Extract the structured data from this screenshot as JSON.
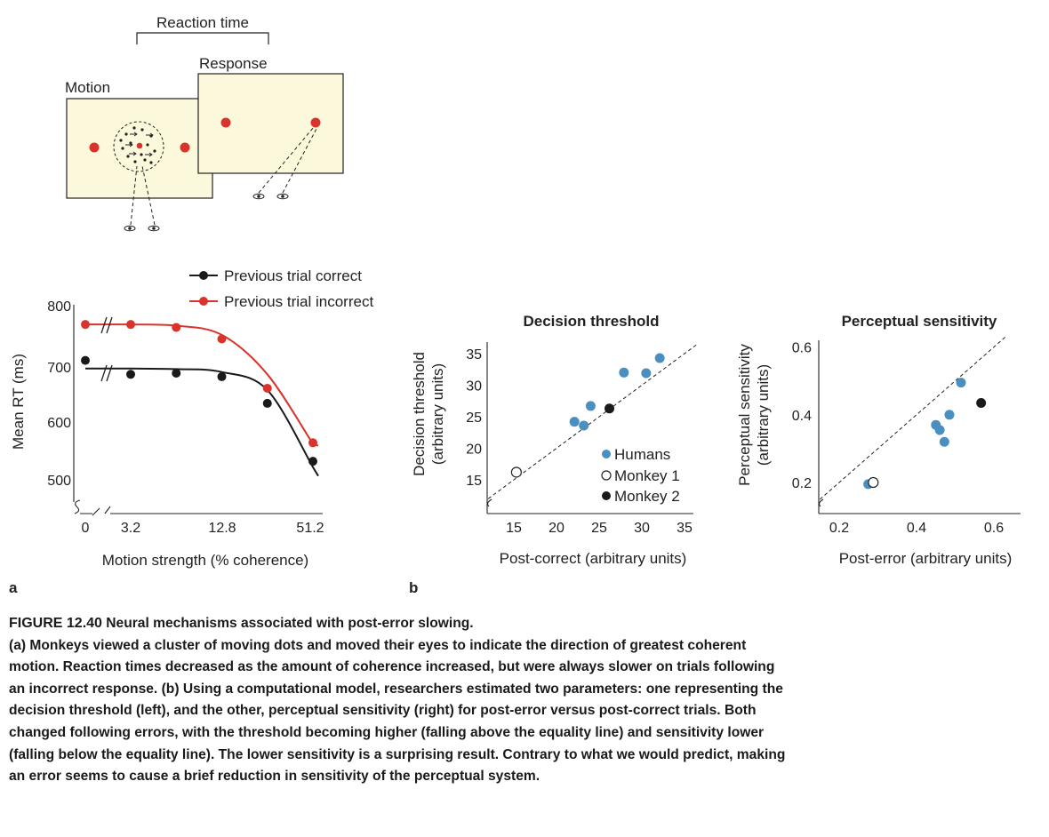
{
  "panel_a": {
    "label": "a",
    "diagram": {
      "reaction_time_label": "Reaction time",
      "motion_label": "Motion",
      "response_label": "Response",
      "screen_fill": "#fcf8dc",
      "target_color": "#d9342b"
    }
  },
  "panel_b": {
    "label": "b"
  },
  "colors": {
    "correct": "#1a1a1a",
    "incorrect": "#d9342b",
    "humans": "#4a8fc0",
    "monkey2": "#1a1a1a"
  },
  "chart_data": [
    {
      "id": "rt",
      "type": "line",
      "title": "",
      "xlabel": "Motion strength (% coherence)",
      "ylabel": "Mean RT (ms)",
      "ylim": [
        470,
        805
      ],
      "y_ticks": [
        "800",
        "700",
        "600",
        "500"
      ],
      "x_tick_labels": [
        "0",
        "3.2",
        "12.8",
        "51.2"
      ],
      "grid": false,
      "legend": "top",
      "series": [
        {
          "name": "Previous trial correct",
          "coherence": [
            0,
            1.6,
            3.2,
            6.4,
            12.8,
            25.6,
            51.2
          ],
          "values": [
            704,
            null,
            680,
            682,
            676,
            630,
            530
          ],
          "fit": [
            690,
            690,
            690,
            689,
            684,
            653,
            520
          ]
        },
        {
          "name": "Previous trial incorrect",
          "coherence": [
            0,
            1.6,
            3.2,
            6.4,
            12.8,
            25.6,
            51.2
          ],
          "values": [
            766,
            null,
            766,
            761,
            741,
            656,
            562
          ],
          "fit": [
            766,
            766,
            766,
            764,
            748,
            680,
            560
          ]
        }
      ]
    },
    {
      "id": "threshold",
      "type": "scatter",
      "title": "Decision threshold",
      "xlabel": "Post-correct (arbitrary units)",
      "ylabel": [
        "Decision threshold",
        "(arbitrary units)"
      ],
      "xlim": [
        11,
        37
      ],
      "ylim": [
        11,
        37
      ],
      "x_ticks": [
        15,
        20,
        25,
        30,
        35
      ],
      "y_ticks": [
        15,
        20,
        25,
        30,
        35
      ],
      "equality_line": true,
      "legend": "lower-right",
      "legend_entries": [
        "Humans",
        "Monkey 1",
        "Monkey 2"
      ],
      "series": [
        {
          "name": "Humans",
          "x": [
            22.1,
            23.2,
            24.0,
            27.9,
            30.5,
            32.1
          ],
          "y": [
            24.2,
            23.6,
            26.7,
            32.0,
            31.9,
            34.3
          ]
        },
        {
          "name": "Monkey 1",
          "x": [
            15.3
          ],
          "y": [
            16.2
          ]
        },
        {
          "name": "Monkey 2",
          "x": [
            26.2
          ],
          "y": [
            26.3
          ]
        }
      ]
    },
    {
      "id": "sensitivity",
      "type": "scatter",
      "title": "Perceptual sensitivity",
      "xlabel": "Post-error (arbitrary units)",
      "ylabel": [
        "Perceptual sensitivity",
        "(arbitrary units)"
      ],
      "xlim": [
        0.15,
        0.65
      ],
      "ylim": [
        0.15,
        0.65
      ],
      "x_ticks": [
        0.2,
        0.4,
        0.6
      ],
      "x_tick_labels": [
        "0.2",
        "0.4",
        "0.6"
      ],
      "y_ticks": [
        0.2,
        0.4,
        0.6
      ],
      "y_tick_labels": [
        "0.2",
        "0.4",
        "0.6"
      ],
      "equality_line": true,
      "series": [
        {
          "name": "Humans",
          "x": [
            0.275,
            0.45,
            0.46,
            0.472,
            0.485,
            0.515
          ],
          "y": [
            0.195,
            0.37,
            0.355,
            0.32,
            0.4,
            0.495
          ]
        },
        {
          "name": "Monkey 1",
          "x": [
            0.288
          ],
          "y": [
            0.2
          ]
        },
        {
          "name": "Monkey 2",
          "x": [
            0.567
          ],
          "y": [
            0.435
          ]
        }
      ]
    }
  ],
  "caption": {
    "title_label": "FIGURE 12.40",
    "title_text": "Neural mechanisms associated with post-error slowing.",
    "a_label": "(a)",
    "a_text": "Monkeys viewed a cluster of moving dots and moved their eyes to indicate the direction of greatest coherent motion. Reaction times decreased as the amount of coherence increased, but were always slower on trials following an incorrect response.",
    "b_label": "(b)",
    "b_text": "Using a computational model, researchers estimated two parameters: one representing the decision threshold (left), and the other, perceptual sensitivity (right) for post-error versus post-correct trials. Both changed following errors, with the threshold becoming higher (falling above the equality line) and sensitivity lower (falling below the equality line). The lower sensitivity is a surprising result. Contrary to what we would predict, making an error seems to cause a brief reduction in sensitivity of the perceptual system."
  }
}
